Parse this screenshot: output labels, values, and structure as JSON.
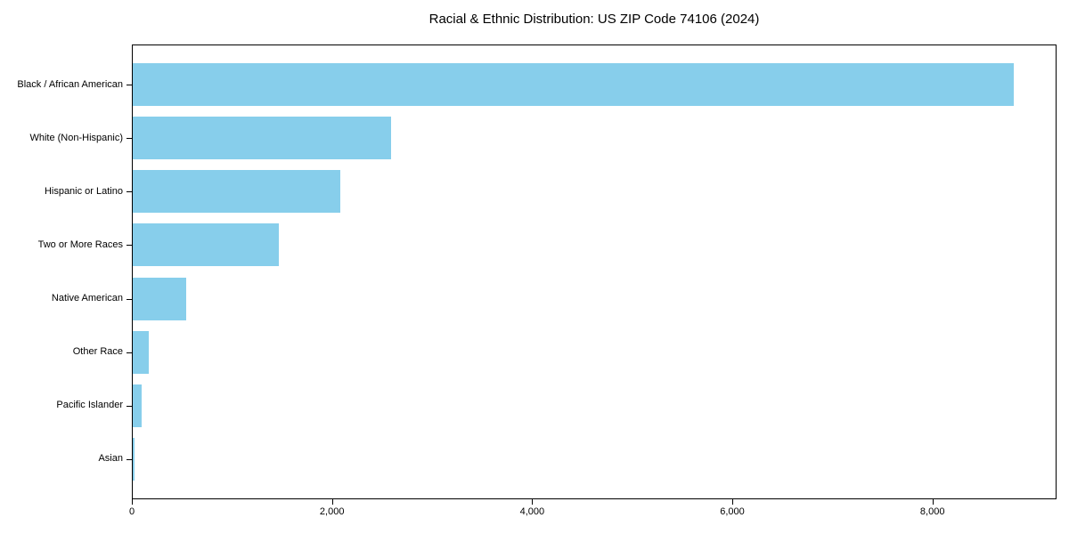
{
  "title": "Racial & Ethnic Distribution: US ZIP Code 74106 (2024)",
  "colors": {
    "bar": "#87CEEB",
    "spine": "#000000",
    "text": "#000000",
    "background": "#ffffff"
  },
  "chart_data": {
    "type": "bar",
    "orientation": "horizontal",
    "title": "Racial & Ethnic Distribution: US ZIP Code 74106 (2024)",
    "categories": [
      "Black / African American",
      "White (Non-Hispanic)",
      "Hispanic or Latino",
      "Two or More Races",
      "Native American",
      "Other Race",
      "Pacific Islander",
      "Asian"
    ],
    "values": [
      8800,
      2580,
      2070,
      1460,
      530,
      160,
      85,
      20
    ],
    "xlabel": "",
    "ylabel": "",
    "xlim": [
      0,
      9240
    ],
    "xticks": [
      0,
      2000,
      4000,
      6000,
      8000
    ],
    "xtick_labels": [
      "0",
      "2,000",
      "4,000",
      "6,000",
      "8,000"
    ],
    "bar_color": "#87CEEB",
    "grid": false,
    "legend": false
  }
}
